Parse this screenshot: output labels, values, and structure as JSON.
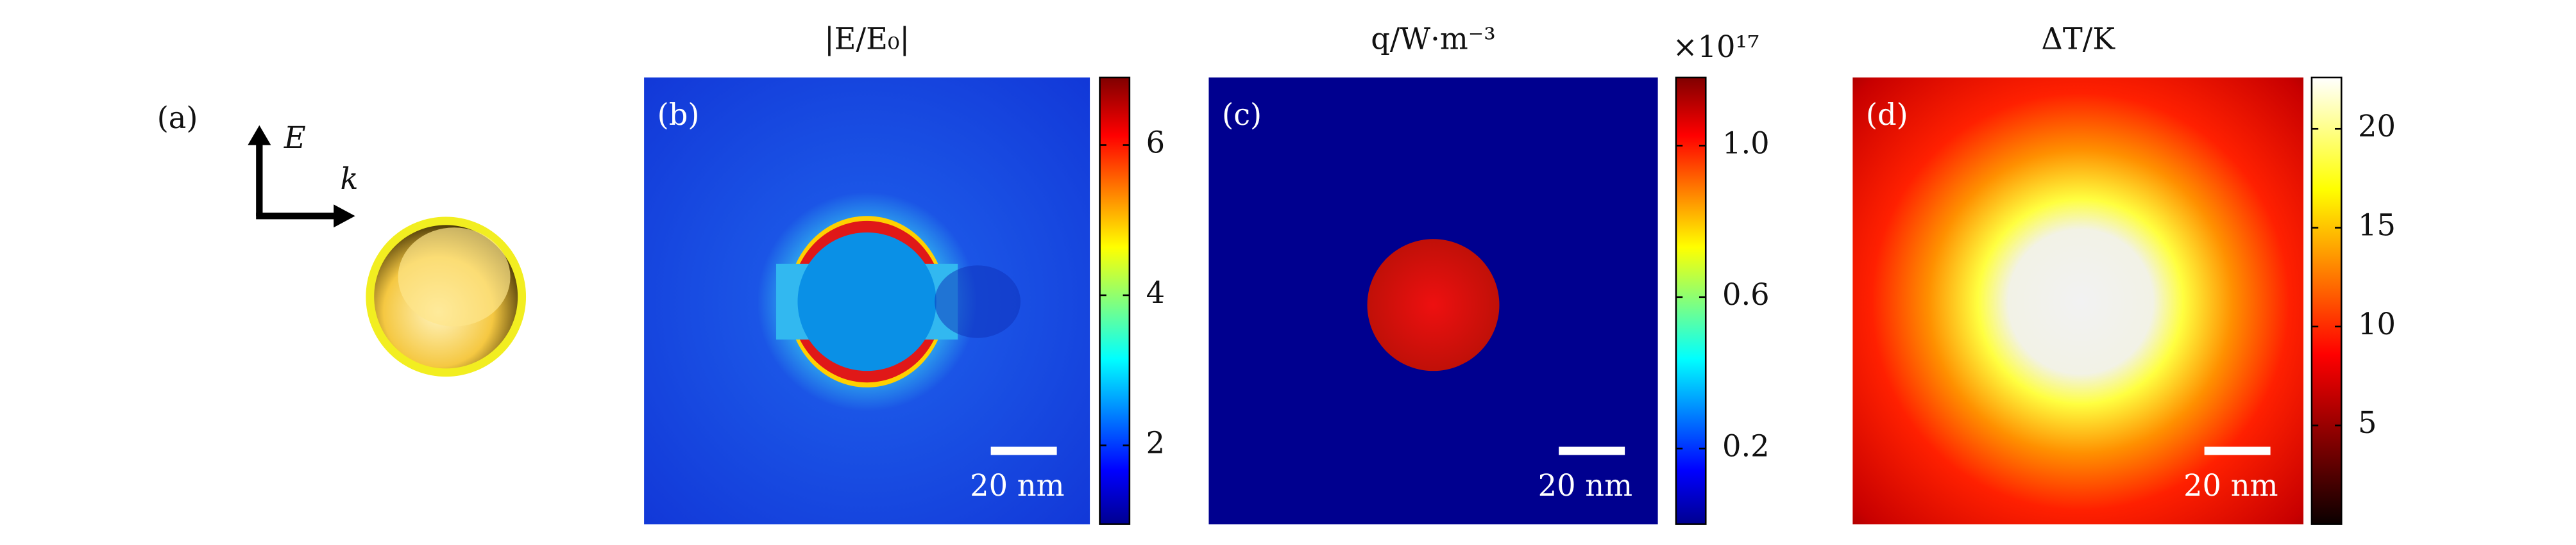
{
  "panels": [
    {
      "label": "(a)",
      "field_label": "E",
      "wave_label": "k"
    },
    {
      "label": "(b)",
      "title": "|E/E₀|",
      "scale_bar": "20 nm",
      "colorbar": {
        "lim": [
          0.95,
          6.9
        ],
        "ticks": [
          2,
          4,
          6
        ],
        "colormap": "jet"
      }
    },
    {
      "label": "(c)",
      "title": "q/W·m⁻³",
      "multiplier": "×10¹⁷",
      "scale_bar": "20 nm",
      "colorbar": {
        "lim": [
          0,
          1.18
        ],
        "ticks": [
          0.2,
          0.6,
          {
            "value": 1,
            "label": "1.0"
          }
        ],
        "colormap": "jet"
      }
    },
    {
      "label": "(d)",
      "title": "ΔT/K",
      "scale_bar": "20 nm",
      "colorbar": {
        "lim": [
          0,
          22.6
        ],
        "ticks": [
          5,
          10,
          15,
          20
        ],
        "colormap": "hot"
      }
    }
  ]
}
